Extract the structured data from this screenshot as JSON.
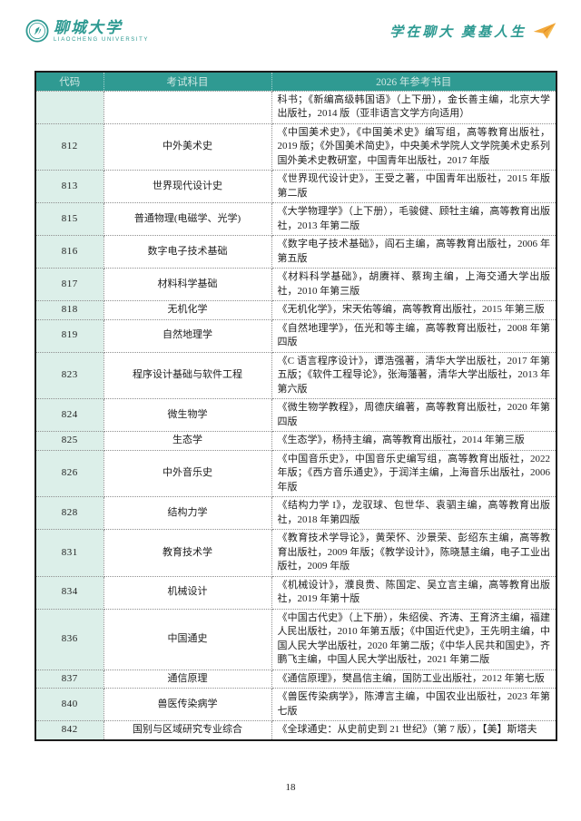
{
  "header": {
    "university_cn": "聊城大学",
    "university_en": "LIAOCHENG UNIVERSITY",
    "slogan": "学在聊大 奠基人生"
  },
  "icons": {
    "emblem": "university-emblem-icon",
    "plane": "paper-plane-icon"
  },
  "colors": {
    "header_bg": "#2f9a92",
    "header_text": "#cfe7e3",
    "code_column_bg": "#dcefe9",
    "accent_teal": "#2e9a92",
    "plane_orange": "#f0a232",
    "outer_border": "#1c1c1c",
    "dotted_border": "#8f8f8f"
  },
  "table": {
    "headers": [
      "代码",
      "考试科目",
      "2026 年参考书目"
    ],
    "rows": [
      {
        "code": "",
        "subject": "",
        "books": "科书；《新编高级韩国语》（上下册），金长善主编，北京大学出版社，2014 版（亚非语言文学方向适用）"
      },
      {
        "code": "812",
        "subject": "中外美术史",
        "books": "《中国美术史》，《中国美术史》编写组，高等教育出版社，2019 版；《外国美术简史》，中央美术学院人文学院美术史系列国外美术史教研室，中国青年出版社，2017 年版"
      },
      {
        "code": "813",
        "subject": "世界现代设计史",
        "books": "《世界现代设计史》，王受之著，中国青年出版社，2015 年版第二版"
      },
      {
        "code": "815",
        "subject": "普通物理(电磁学、光学)",
        "books": "《大学物理学》（上下册），毛骏健、顾牡主编，高等教育出版社，2013 年第二版"
      },
      {
        "code": "816",
        "subject": "数字电子技术基础",
        "books": "《数字电子技术基础》，阎石主编，高等教育出版社，2006 年第五版"
      },
      {
        "code": "817",
        "subject": "材料科学基础",
        "books": "《材料科学基础》，胡赓祥、蔡珣主编，上海交通大学出版社，2010 年第三版"
      },
      {
        "code": "818",
        "subject": "无机化学",
        "books": "《无机化学》，宋天佑等编，高等教育出版社，2015 年第三版"
      },
      {
        "code": "819",
        "subject": "自然地理学",
        "books": "《自然地理学》，伍光和等主编，高等教育出版社，2008 年第四版"
      },
      {
        "code": "823",
        "subject": "程序设计基础与软件工程",
        "books": "《C 语言程序设计》，谭浩强著，清华大学出版社，2017 年第五版；《软件工程导论》，张海藩著，清华大学出版社，2013 年第六版"
      },
      {
        "code": "824",
        "subject": "微生物学",
        "books": "《微生物学教程》，周德庆编著，高等教育出版社，2020 年第四版"
      },
      {
        "code": "825",
        "subject": "生态学",
        "books": "《生态学》，杨持主编，高等教育出版社，2014 年第三版"
      },
      {
        "code": "826",
        "subject": "中外音乐史",
        "books": "《中国音乐史》，中国音乐史编写组，高等教育出版社，2022 年版；《西方音乐通史》，于润洋主编，上海音乐出版社，2006 年版"
      },
      {
        "code": "828",
        "subject": "结构力学",
        "books": "《结构力学 I》，龙驭球、包世华、袁驷主编，高等教育出版社，2018 年第四版"
      },
      {
        "code": "831",
        "subject": "教育技术学",
        "books": "《教育技术学导论》，黄荣怀、沙景荣、彭绍东主编，高等教育出版社，2009 年版；《教学设计》，陈晓慧主编，电子工业出版社，2009 年版"
      },
      {
        "code": "834",
        "subject": "机械设计",
        "books": "《机械设计》，濮良贵、陈国定、吴立言主编，高等教育出版社，2019 年第十版"
      },
      {
        "code": "836",
        "subject": "中国通史",
        "books": "《中国古代史》（上下册），朱绍侯、齐涛、王育济主编，福建人民出版社，2010 年第五版；《中国近代史》，王先明主编，中国人民大学出版社，2020 年第二版；《中华人民共和国史》，齐鹏飞主编，中国人民大学出版社，2021 年第二版"
      },
      {
        "code": "837",
        "subject": "通信原理",
        "books": "《通信原理》，樊昌信主编，国防工业出版社，2012 年第七版"
      },
      {
        "code": "840",
        "subject": "兽医传染病学",
        "books": "《兽医传染病学》，陈溥言主编，中国农业出版社，2023 年第七版"
      },
      {
        "code": "842",
        "subject": "国别与区域研究专业综合",
        "books": "《全球通史：从史前史到 21 世纪》（第 7 版），【美】斯塔夫"
      }
    ]
  },
  "footer": {
    "page_number": "18"
  }
}
